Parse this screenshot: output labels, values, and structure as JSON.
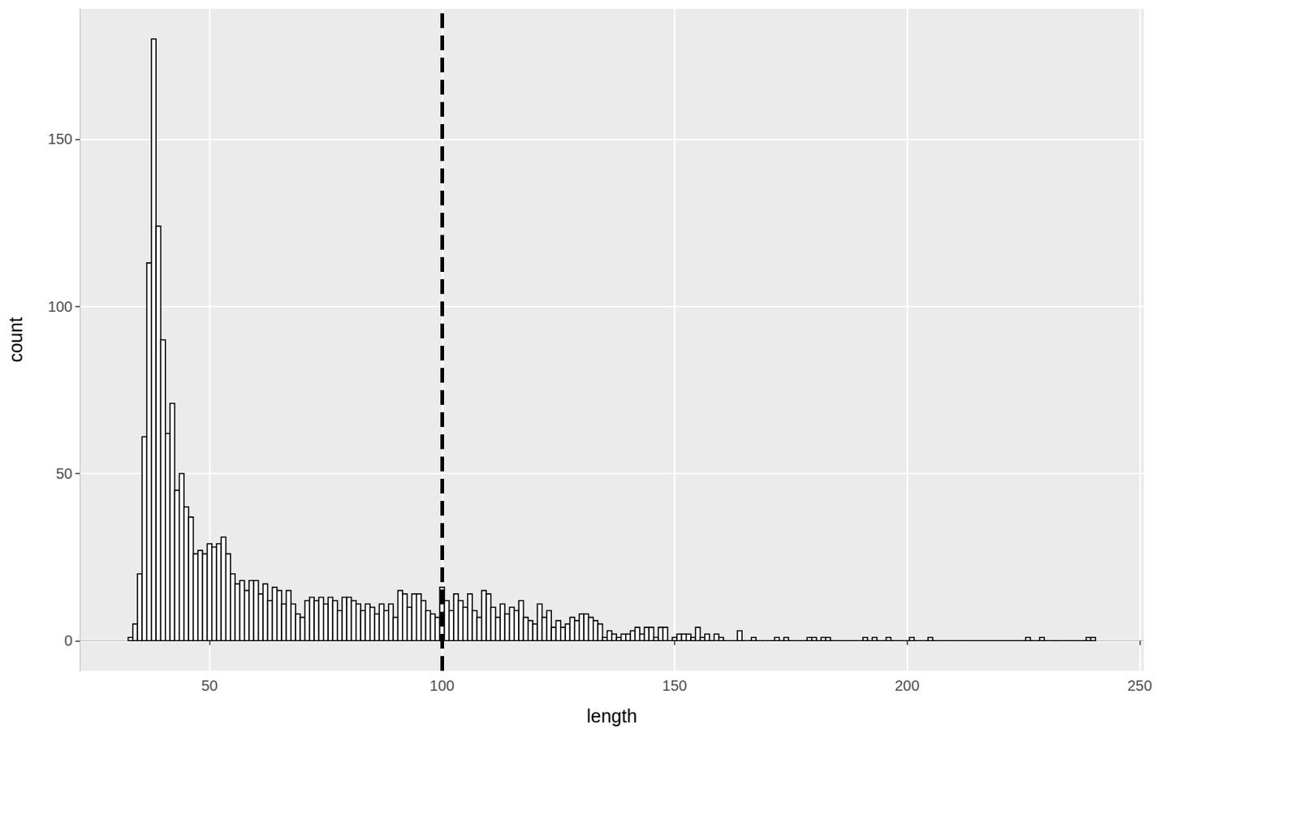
{
  "chart_data": {
    "type": "histogram",
    "x_label": "length",
    "y_label": "count",
    "color": "#ffffff",
    "bins": [
      32.5,
      33.5,
      34.5,
      35.5,
      36.5,
      37.5,
      38.5,
      39.5,
      40.5,
      41.5,
      42.5,
      43.5,
      44.5,
      45.5,
      46.5,
      47.5,
      48.5,
      49.5,
      50.5,
      51.5,
      52.5,
      53.5,
      54.5,
      55.5,
      56.5,
      57.5,
      58.5,
      59.5,
      60.5,
      61.5,
      62.5,
      63.5,
      64.5,
      65.5,
      66.5,
      67.5,
      68.5,
      69.5,
      70.5,
      71.5,
      72.5,
      73.5,
      74.5,
      75.5,
      76.5,
      77.5,
      78.5,
      79.5,
      80.5,
      81.5,
      82.5,
      83.5,
      84.5,
      85.5,
      86.5,
      87.5,
      88.5,
      89.5,
      90.5,
      91.5,
      92.5,
      93.5,
      94.5,
      95.5,
      96.5,
      97.5,
      98.5,
      99.5,
      100.5,
      101.5,
      102.5,
      103.5,
      104.5,
      105.5,
      106.5,
      107.5,
      108.5,
      109.5,
      110.5,
      111.5,
      112.5,
      113.5,
      114.5,
      115.5,
      116.5,
      117.5,
      118.5,
      119.5,
      120.5,
      121.5,
      122.5,
      123.5,
      124.5,
      125.5,
      126.5,
      127.5,
      128.5,
      129.5,
      130.5,
      131.5,
      132.5,
      133.5,
      134.5,
      135.5,
      136.5,
      137.5,
      138.5,
      139.5,
      140.5,
      141.5,
      142.5,
      143.5,
      144.5,
      145.5,
      146.5,
      147.5,
      148.5,
      149.5,
      150.5,
      151.5,
      152.5,
      153.5,
      154.5,
      155.5,
      156.5,
      157.5,
      158.5,
      159.5,
      160.5,
      161.5,
      162.5,
      163.5,
      164.5,
      165.5,
      166.5,
      167.5,
      168.5,
      169.5,
      170.5,
      171.5,
      172.5,
      173.5,
      174.5,
      175.5,
      176.5,
      177.5,
      178.5,
      179.5,
      180.5,
      181.5,
      182.5,
      183.5,
      184.5,
      185.5,
      186.5,
      187.5,
      188.5,
      189.5,
      190.5,
      191.5,
      192.5,
      193.5,
      194.5,
      195.5,
      196.5,
      197.5,
      198.5,
      199.5,
      200.5,
      201.5,
      202.5,
      203.5,
      204.5,
      205.5,
      206.5,
      207.5,
      208.5,
      209.5,
      210.5,
      211.5,
      212.5,
      213.5,
      214.5,
      215.5,
      216.5,
      217.5,
      218.5,
      219.5,
      220.5,
      221.5,
      222.5,
      223.5,
      224.5,
      225.5,
      226.5,
      227.5,
      228.5,
      229.5,
      230.5,
      231.5,
      232.5,
      233.5,
      234.5,
      235.5,
      236.5,
      237.5,
      238.5,
      239.5,
      240.5
    ],
    "counts": [
      1,
      5,
      20,
      61,
      113,
      180,
      124,
      90,
      62,
      71,
      45,
      50,
      40,
      37,
      26,
      27,
      26,
      29,
      28,
      29,
      31,
      26,
      20,
      17,
      18,
      15,
      18,
      18,
      14,
      17,
      12,
      16,
      15,
      11,
      15,
      11,
      8,
      7,
      12,
      13,
      12,
      13,
      11,
      13,
      12,
      9,
      13,
      13,
      12,
      11,
      9,
      11,
      10,
      8,
      11,
      9,
      11,
      7,
      15,
      14,
      10,
      14,
      14,
      12,
      9,
      8,
      7,
      16,
      12,
      9,
      14,
      12,
      10,
      14,
      9,
      7,
      15,
      14,
      10,
      7,
      11,
      8,
      10,
      9,
      12,
      7,
      6,
      5,
      11,
      7,
      9,
      4,
      6,
      4,
      5,
      7,
      6,
      8,
      8,
      7,
      6,
      5,
      1,
      3,
      2,
      1,
      2,
      2,
      3,
      4,
      2,
      4,
      4,
      1,
      4,
      4,
      0,
      1,
      2,
      2,
      2,
      1,
      4,
      1,
      2,
      0,
      2,
      1,
      0,
      0,
      0,
      3,
      0,
      0,
      1,
      0,
      0,
      0,
      0,
      1,
      0,
      1,
      0,
      0,
      0,
      0,
      1,
      1,
      0,
      1,
      1,
      0,
      0,
      0,
      0,
      0,
      0,
      0,
      1,
      0,
      1,
      0,
      0,
      1,
      0,
      0,
      0,
      0,
      1,
      0,
      0,
      0,
      1,
      0,
      0,
      0,
      0,
      0,
      0,
      0,
      0,
      0,
      0,
      0,
      0,
      0,
      0,
      0,
      0,
      0,
      0,
      0,
      0,
      1,
      0,
      0,
      1,
      0,
      0,
      0,
      0,
      0,
      0,
      0,
      0,
      0,
      1,
      1
    ],
    "reference_line": {
      "x": 100,
      "line_style": "dashed"
    },
    "xlim": [
      22.1,
      250.9
    ],
    "xticks": [
      50,
      100,
      150,
      200,
      250
    ],
    "ylim": [
      -9,
      189
    ],
    "yticks": [
      0,
      50,
      100,
      150
    ],
    "grid": true
  }
}
